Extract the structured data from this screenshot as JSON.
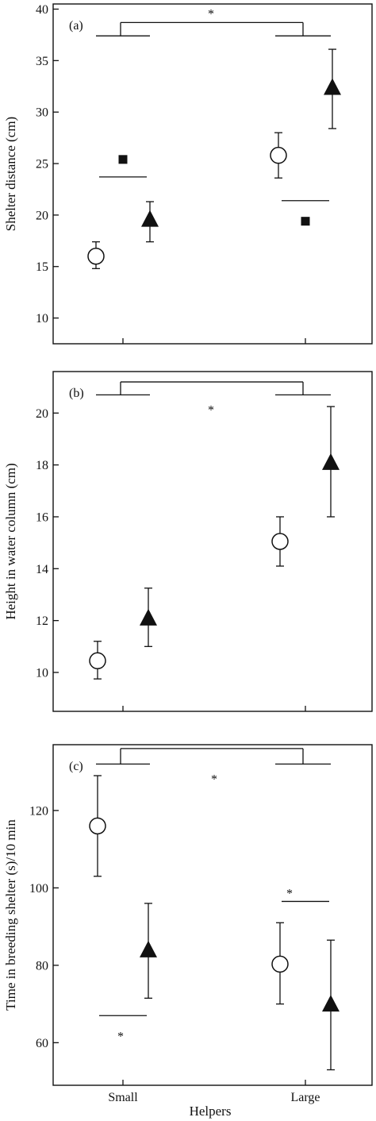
{
  "xlabel": "Helpers",
  "categories": [
    "Small",
    "Large"
  ],
  "colors": {
    "ink": "#111111",
    "background": "#ffffff"
  },
  "marker_shapes": {
    "series_open": "circle-open",
    "series_filled": "triangle-filled",
    "reference": "square-filled"
  },
  "chart_data": [
    {
      "type": "scatter",
      "panel_label": "(a)",
      "ylabel": "Shelter distance (cm)",
      "ylim": [
        7.5,
        40.5
      ],
      "yticks": [
        "10",
        "15",
        "20",
        "25",
        "30",
        "35",
        "40"
      ],
      "categories": [
        "Small",
        "Large"
      ],
      "series": [
        {
          "marker": "circle-open",
          "values": [
            16.0,
            25.8
          ],
          "err_low": [
            14.8,
            23.6
          ],
          "err_high": [
            17.4,
            28.0
          ]
        },
        {
          "marker": "triangle-filled",
          "values": [
            19.6,
            32.4
          ],
          "err_low": [
            17.4,
            28.4
          ],
          "err_high": [
            21.3,
            36.1
          ]
        }
      ],
      "reference_points": [
        {
          "category": "Small",
          "value": 25.4,
          "line_value": 23.7
        },
        {
          "category": "Large",
          "value": 19.4,
          "line_value": 21.4
        }
      ],
      "bracket": {
        "annotation": "*",
        "arm_value": 37.4,
        "top_value": 38.7
      }
    },
    {
      "type": "scatter",
      "panel_label": "(b)",
      "ylabel": "Height in water column (cm)",
      "ylim": [
        8.5,
        21.6
      ],
      "yticks": [
        "10",
        "12",
        "14",
        "16",
        "18",
        "20"
      ],
      "categories": [
        "Small",
        "Large"
      ],
      "series": [
        {
          "marker": "circle-open",
          "values": [
            10.45,
            15.05
          ],
          "err_low": [
            9.75,
            14.1
          ],
          "err_high": [
            11.2,
            16.0
          ]
        },
        {
          "marker": "triangle-filled",
          "values": [
            12.1,
            18.1
          ],
          "err_low": [
            11.0,
            16.0
          ],
          "err_high": [
            13.25,
            20.25
          ]
        }
      ],
      "bracket": {
        "annotation": "*",
        "arm_value": 20.7,
        "top_value": 21.2
      }
    },
    {
      "type": "scatter",
      "panel_label": "(c)",
      "ylabel": "Time in breeding shelter (s)/10 min",
      "ylim": [
        49,
        137
      ],
      "yticks": [
        "60",
        "80",
        "100",
        "120"
      ],
      "categories": [
        "Small",
        "Large"
      ],
      "series": [
        {
          "marker": "circle-open",
          "values": [
            116,
            80.3
          ],
          "err_low": [
            103,
            70
          ],
          "err_high": [
            129,
            91
          ]
        },
        {
          "marker": "triangle-filled",
          "values": [
            84,
            70
          ],
          "err_low": [
            71.5,
            53
          ],
          "err_high": [
            96,
            86.5
          ]
        }
      ],
      "comparisons": [
        {
          "category": "Small",
          "annotation": "*",
          "line_value": 67
        },
        {
          "category": "Large",
          "annotation": "*",
          "line_value": 96.5
        }
      ],
      "bracket": {
        "annotation": "*",
        "arm_value": 132,
        "top_value": 136
      }
    }
  ]
}
